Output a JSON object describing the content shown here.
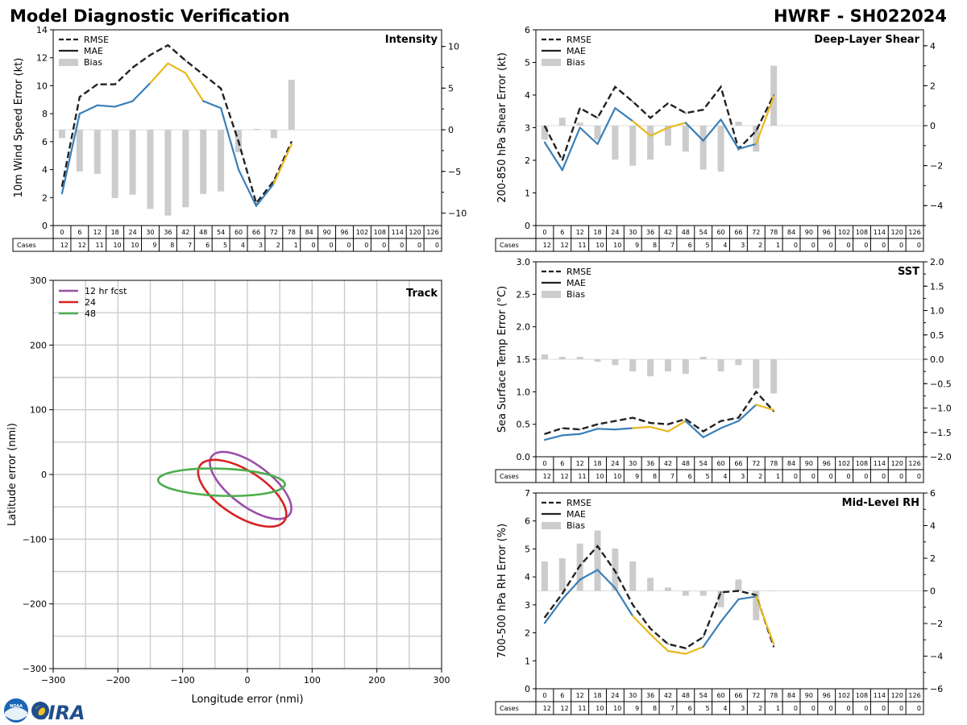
{
  "header": {
    "title": "Model Diagnostic Verification",
    "model_storm": "HWRF - SH022024"
  },
  "logo": {
    "noaa": "NOAA",
    "cira": "CIRA"
  },
  "colors": {
    "rmse": "#222222",
    "mae": "#3a7fb8",
    "mae_hi": "#e8b81e",
    "bias": "#cccccc",
    "track12": "#9a4fa8",
    "track24": "#d62222",
    "track48": "#4cae4c",
    "grid": "#cccccc"
  },
  "table": {
    "label": "Cases",
    "hours": [
      "0",
      "6",
      "12",
      "18",
      "24",
      "30",
      "36",
      "42",
      "48",
      "54",
      "60",
      "66",
      "72",
      "78",
      "84",
      "90",
      "96",
      "102",
      "108",
      "114",
      "120",
      "126"
    ],
    "cases": [
      "12",
      "12",
      "11",
      "10",
      "10",
      "9",
      "8",
      "7",
      "6",
      "5",
      "4",
      "3",
      "2",
      "1",
      "0",
      "0",
      "0",
      "0",
      "0",
      "0",
      "0",
      "0"
    ]
  },
  "chart_data": [
    {
      "id": "intensity",
      "type": "line",
      "title": "Intensity",
      "ylabel": "10m Wind Speed Error (kt)",
      "ylim": [
        0,
        14
      ],
      "yticks": [
        "0",
        "2",
        "4",
        "6",
        "8",
        "10",
        "12",
        "14"
      ],
      "ytick_values": [
        0,
        2,
        4,
        6,
        8,
        10,
        12,
        14
      ],
      "y2lim": [
        -11.5,
        12
      ],
      "y2ticks": [
        "−10",
        "−5",
        "0",
        "5",
        "10"
      ],
      "y2tick_values": [
        -10,
        -5,
        0,
        5,
        10
      ],
      "legend": [
        "RMSE",
        "MAE",
        "Bias"
      ],
      "x": [
        0,
        6,
        12,
        18,
        24,
        30,
        36,
        42,
        48,
        54,
        60,
        66,
        72,
        78
      ],
      "series": [
        {
          "name": "RMSE",
          "values": [
            2.8,
            9.2,
            10.1,
            10.1,
            11.3,
            12.2,
            12.9,
            11.8,
            10.8,
            9.8,
            6.0,
            1.6,
            3.2,
            6.0
          ]
        },
        {
          "name": "MAE",
          "values": [
            2.3,
            8.0,
            8.6,
            8.5,
            8.9,
            10.2,
            11.6,
            10.9,
            8.9,
            8.4,
            4.0,
            1.4,
            3.0,
            5.8
          ]
        },
        {
          "name": "Bias",
          "values": [
            -1.0,
            -5.0,
            -5.3,
            -8.2,
            -7.8,
            -9.5,
            -10.3,
            -9.3,
            -7.7,
            -7.4,
            -2.7,
            0.1,
            -1.0,
            6.0
          ]
        }
      ],
      "mae_highlight": [
        false,
        false,
        false,
        false,
        false,
        true,
        true,
        true,
        true,
        false,
        false,
        false,
        true,
        true
      ]
    },
    {
      "id": "shear",
      "type": "line",
      "title": "Deep-Layer Shear",
      "ylabel": "200-850 hPa Shear Error (kt)",
      "ylim": [
        0,
        6
      ],
      "yticks": [
        "0",
        "1",
        "2",
        "3",
        "4",
        "5",
        "6"
      ],
      "ytick_values": [
        0,
        1,
        2,
        3,
        4,
        5,
        6
      ],
      "y2lim": [
        -5.0,
        4.8
      ],
      "y2ticks": [
        "−4",
        "−2",
        "0",
        "2",
        "4"
      ],
      "y2tick_values": [
        -4,
        -2,
        0,
        2,
        4
      ],
      "legend": [
        "RMSE",
        "MAE",
        "Bias"
      ],
      "x": [
        0,
        6,
        12,
        18,
        24,
        30,
        36,
        42,
        48,
        54,
        60,
        66,
        72,
        78
      ],
      "series": [
        {
          "name": "RMSE",
          "values": [
            3.05,
            2.0,
            3.6,
            3.3,
            4.25,
            3.8,
            3.3,
            3.75,
            3.45,
            3.55,
            4.25,
            2.35,
            2.9,
            4.0
          ]
        },
        {
          "name": "MAE",
          "values": [
            2.55,
            1.7,
            3.0,
            2.5,
            3.6,
            3.2,
            2.75,
            3.0,
            3.15,
            2.6,
            3.25,
            2.35,
            2.5,
            3.95
          ]
        },
        {
          "name": "Bias",
          "values": [
            -0.7,
            0.4,
            0.15,
            -0.7,
            -1.7,
            -2.0,
            -1.7,
            -1.0,
            -1.3,
            -2.2,
            -2.3,
            0.2,
            -1.3,
            3.0
          ]
        }
      ],
      "mae_highlight": [
        false,
        false,
        false,
        false,
        false,
        true,
        true,
        true,
        true,
        false,
        false,
        false,
        true,
        true
      ]
    },
    {
      "id": "sst",
      "type": "line",
      "title": "SST",
      "ylabel": "Sea Surface Temp Error (°C)",
      "ylim": [
        0,
        3
      ],
      "yticks": [
        "0.0",
        "0.5",
        "1.0",
        "1.5",
        "2.0",
        "2.5",
        "3.0"
      ],
      "ytick_values": [
        0,
        0.5,
        1,
        1.5,
        2,
        2.5,
        3
      ],
      "y2lim": [
        -2,
        2
      ],
      "y2ticks": [
        "−2.0",
        "−1.5",
        "−1.0",
        "−0.5",
        "0.0",
        "0.5",
        "1.0",
        "1.5",
        "2.0"
      ],
      "y2tick_values": [
        -2,
        -1.5,
        -1,
        -0.5,
        0,
        0.5,
        1,
        1.5,
        2
      ],
      "legend": [
        "RMSE",
        "MAE",
        "Bias"
      ],
      "x": [
        0,
        6,
        12,
        18,
        24,
        30,
        36,
        42,
        48,
        54,
        60,
        66,
        72,
        78
      ],
      "series": [
        {
          "name": "RMSE",
          "values": [
            0.35,
            0.44,
            0.42,
            0.5,
            0.55,
            0.6,
            0.52,
            0.5,
            0.58,
            0.39,
            0.55,
            0.6,
            1.0,
            0.7
          ]
        },
        {
          "name": "MAE",
          "values": [
            0.26,
            0.33,
            0.35,
            0.43,
            0.42,
            0.44,
            0.46,
            0.39,
            0.55,
            0.3,
            0.44,
            0.55,
            0.8,
            0.72
          ]
        },
        {
          "name": "Bias",
          "values": [
            0.1,
            0.05,
            0.05,
            -0.05,
            -0.12,
            -0.25,
            -0.35,
            -0.25,
            -0.3,
            0.05,
            -0.25,
            -0.12,
            -0.6,
            -0.7
          ]
        }
      ],
      "mae_highlight": [
        false,
        false,
        false,
        false,
        false,
        true,
        true,
        true,
        true,
        false,
        false,
        false,
        true,
        true
      ]
    },
    {
      "id": "rh",
      "type": "line",
      "title": "Mid-Level RH",
      "ylabel": "700-500 hPa RH Error (%)",
      "ylim": [
        0,
        7
      ],
      "yticks": [
        "0",
        "1",
        "2",
        "3",
        "4",
        "5",
        "6",
        "7"
      ],
      "ytick_values": [
        0,
        1,
        2,
        3,
        4,
        5,
        6,
        7
      ],
      "y2lim": [
        -6,
        6
      ],
      "y2ticks": [
        "−6",
        "−4",
        "−2",
        "0",
        "2",
        "4",
        "6"
      ],
      "y2tick_values": [
        -6,
        -4,
        -2,
        0,
        2,
        4,
        6
      ],
      "legend": [
        "RMSE",
        "MAE",
        "Bias"
      ],
      "x": [
        0,
        6,
        12,
        18,
        24,
        30,
        36,
        42,
        48,
        54,
        60,
        66,
        72,
        78
      ],
      "series": [
        {
          "name": "RMSE",
          "values": [
            2.55,
            3.4,
            4.4,
            5.1,
            4.2,
            3.0,
            2.15,
            1.6,
            1.45,
            1.85,
            3.45,
            3.5,
            3.35,
            1.5
          ]
        },
        {
          "name": "MAE",
          "values": [
            2.35,
            3.2,
            3.9,
            4.25,
            3.6,
            2.6,
            1.95,
            1.35,
            1.25,
            1.5,
            2.4,
            3.2,
            3.3,
            1.6
          ]
        },
        {
          "name": "Bias",
          "values": [
            1.8,
            2.0,
            2.9,
            3.7,
            2.6,
            1.8,
            0.8,
            0.2,
            -0.3,
            -0.3,
            -1.0,
            0.7,
            -1.8,
            0.0
          ]
        }
      ],
      "mae_highlight": [
        false,
        false,
        false,
        false,
        false,
        true,
        true,
        true,
        true,
        true,
        false,
        false,
        true,
        true
      ]
    },
    {
      "id": "track",
      "type": "scatter",
      "title": "Track",
      "xlabel": "Longitude error (nmi)",
      "ylabel": "Latitude error (nmi)",
      "xlim": [
        -300,
        300
      ],
      "ylim": [
        -300,
        300
      ],
      "xticks": [
        "−300",
        "−200",
        "−100",
        "0",
        "100",
        "200",
        "300"
      ],
      "xtick_values": [
        -300,
        -200,
        -100,
        0,
        100,
        200,
        300
      ],
      "yticks": [
        "−300",
        "−200",
        "−100",
        "0",
        "100",
        "200",
        "300"
      ],
      "ytick_values": [
        -300,
        -200,
        -100,
        0,
        100,
        200,
        300
      ],
      "legend": [
        "12 hr fcst",
        "24",
        "48"
      ],
      "ellipses": [
        {
          "name": "12 hr fcst",
          "cx": 5,
          "cy": -17,
          "a": 75,
          "b": 32,
          "angle_deg": -37
        },
        {
          "name": "24",
          "cx": -8,
          "cy": -29,
          "a": 78,
          "b": 35,
          "angle_deg": -33
        },
        {
          "name": "48",
          "cx": -40,
          "cy": -12,
          "a": 98,
          "b": 21,
          "angle_deg": -2
        }
      ]
    }
  ]
}
